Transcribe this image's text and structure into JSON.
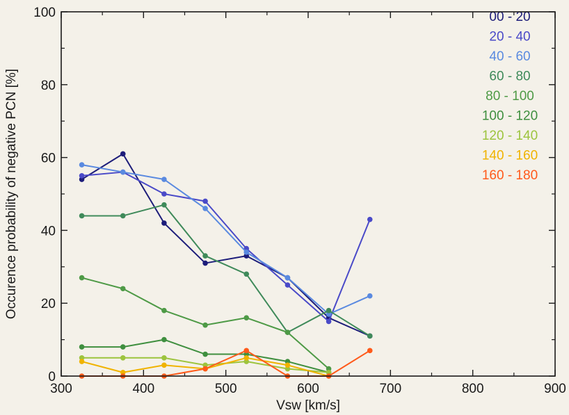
{
  "chart_data": {
    "type": "line",
    "title": "",
    "xlabel": "Vsw [km/s]",
    "ylabel": "Occurence probability of negative PCN [%]",
    "xlim": [
      300,
      900
    ],
    "ylim": [
      0,
      100
    ],
    "xticks": [
      300,
      400,
      500,
      600,
      700,
      800,
      900
    ],
    "yticks": [
      0,
      20,
      40,
      60,
      80,
      100
    ],
    "grid": false,
    "legend_position": "top-right",
    "series": [
      {
        "name": "00 - 20",
        "color": "#1d1d7a",
        "x": [
          325,
          375,
          425,
          475,
          525,
          575,
          625,
          675
        ],
        "y": [
          54,
          61,
          42,
          31,
          33,
          27,
          16,
          11
        ]
      },
      {
        "name": "20 - 40",
        "color": "#4a4ac8",
        "x": [
          325,
          375,
          425,
          475,
          525,
          575,
          625,
          675
        ],
        "y": [
          55,
          56,
          50,
          48,
          35,
          25,
          15,
          43
        ]
      },
      {
        "name": "40 - 60",
        "color": "#5a8ae0",
        "x": [
          325,
          375,
          425,
          475,
          525,
          575,
          625,
          675
        ],
        "y": [
          58,
          56,
          54,
          46,
          34,
          27,
          17,
          22
        ]
      },
      {
        "name": "60 - 80",
        "color": "#3f8a5a",
        "x": [
          325,
          375,
          425,
          475,
          525,
          575,
          625,
          675
        ],
        "y": [
          44,
          44,
          47,
          33,
          28,
          12,
          18,
          11
        ]
      },
      {
        "name": "80 - 100",
        "color": "#4e9a46",
        "x": [
          325,
          375,
          425,
          475,
          525,
          575,
          625,
          675
        ],
        "y": [
          27,
          24,
          18,
          14,
          16,
          12,
          2,
          null
        ]
      },
      {
        "name": "100 - 120",
        "color": "#3f8f3f",
        "x": [
          325,
          375,
          425,
          475,
          525,
          575,
          625,
          675
        ],
        "y": [
          8,
          8,
          10,
          6,
          6,
          4,
          1,
          null
        ]
      },
      {
        "name": "120 - 140",
        "color": "#9dc43e",
        "x": [
          325,
          375,
          425,
          475,
          525,
          575,
          625,
          675
        ],
        "y": [
          5,
          5,
          5,
          3,
          4,
          2,
          1,
          null
        ]
      },
      {
        "name": "140 - 160",
        "color": "#f0b300",
        "x": [
          325,
          375,
          425,
          475,
          525,
          575,
          625,
          675
        ],
        "y": [
          4,
          1,
          3,
          2,
          5,
          3,
          0,
          null
        ]
      },
      {
        "name": "160 - 180",
        "color": "#ff5a1a",
        "x": [
          325,
          375,
          425,
          475,
          525,
          575,
          625,
          675
        ],
        "y": [
          0,
          0,
          0,
          2,
          7,
          0,
          0,
          7
        ]
      }
    ]
  }
}
